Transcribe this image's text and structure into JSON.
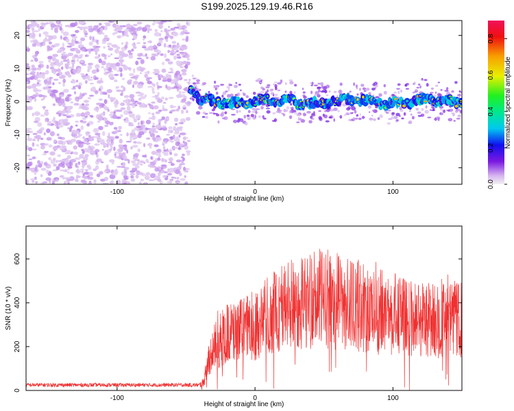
{
  "page": {
    "title": "S199.2025.129.19.46.R16"
  },
  "colors": {
    "snr_line": "#f03030",
    "frame": "#000000"
  },
  "chart_data": [
    {
      "type": "heatmap",
      "xlabel": "Height of straight line (km)",
      "ylabel": "Frequency (Hz)",
      "xlim": [
        -166,
        150
      ],
      "ylim": [
        -25,
        24.5
      ],
      "xticks": [
        -100,
        0,
        100
      ],
      "yticks": [
        -20,
        -10,
        0,
        10,
        20
      ],
      "noise_region_x": [
        -166,
        -48
      ],
      "signal_ridge_frequency": 0,
      "colorbar": {
        "label": "Normalized spectral amplitude",
        "range": [
          0.0,
          0.9
        ],
        "ticks": [
          0.0,
          0.2,
          0.4,
          0.6,
          0.8
        ],
        "colormap": "rainbow"
      }
    },
    {
      "type": "line",
      "xlabel": "Height of straight line (km)",
      "ylabel": "SNR (10 * v/v)",
      "xlim": [
        -166,
        150
      ],
      "ylim": [
        0,
        750
      ],
      "xticks": [
        -100,
        0,
        100
      ],
      "yticks": [
        0,
        200,
        400,
        600
      ],
      "series": [
        {
          "x": [
            -166,
            -150,
            -120,
            -90,
            -60,
            -40,
            -37,
            -33,
            -28,
            -20,
            -10,
            0,
            10,
            20,
            30,
            40,
            50,
            60,
            70,
            80,
            90,
            100,
            110,
            120,
            130,
            140,
            150
          ],
          "values": [
            25,
            25,
            25,
            25,
            25,
            25,
            40,
            160,
            210,
            260,
            270,
            300,
            340,
            380,
            400,
            410,
            420,
            410,
            390,
            380,
            360,
            350,
            330,
            330,
            320,
            320,
            320
          ]
        }
      ]
    }
  ]
}
